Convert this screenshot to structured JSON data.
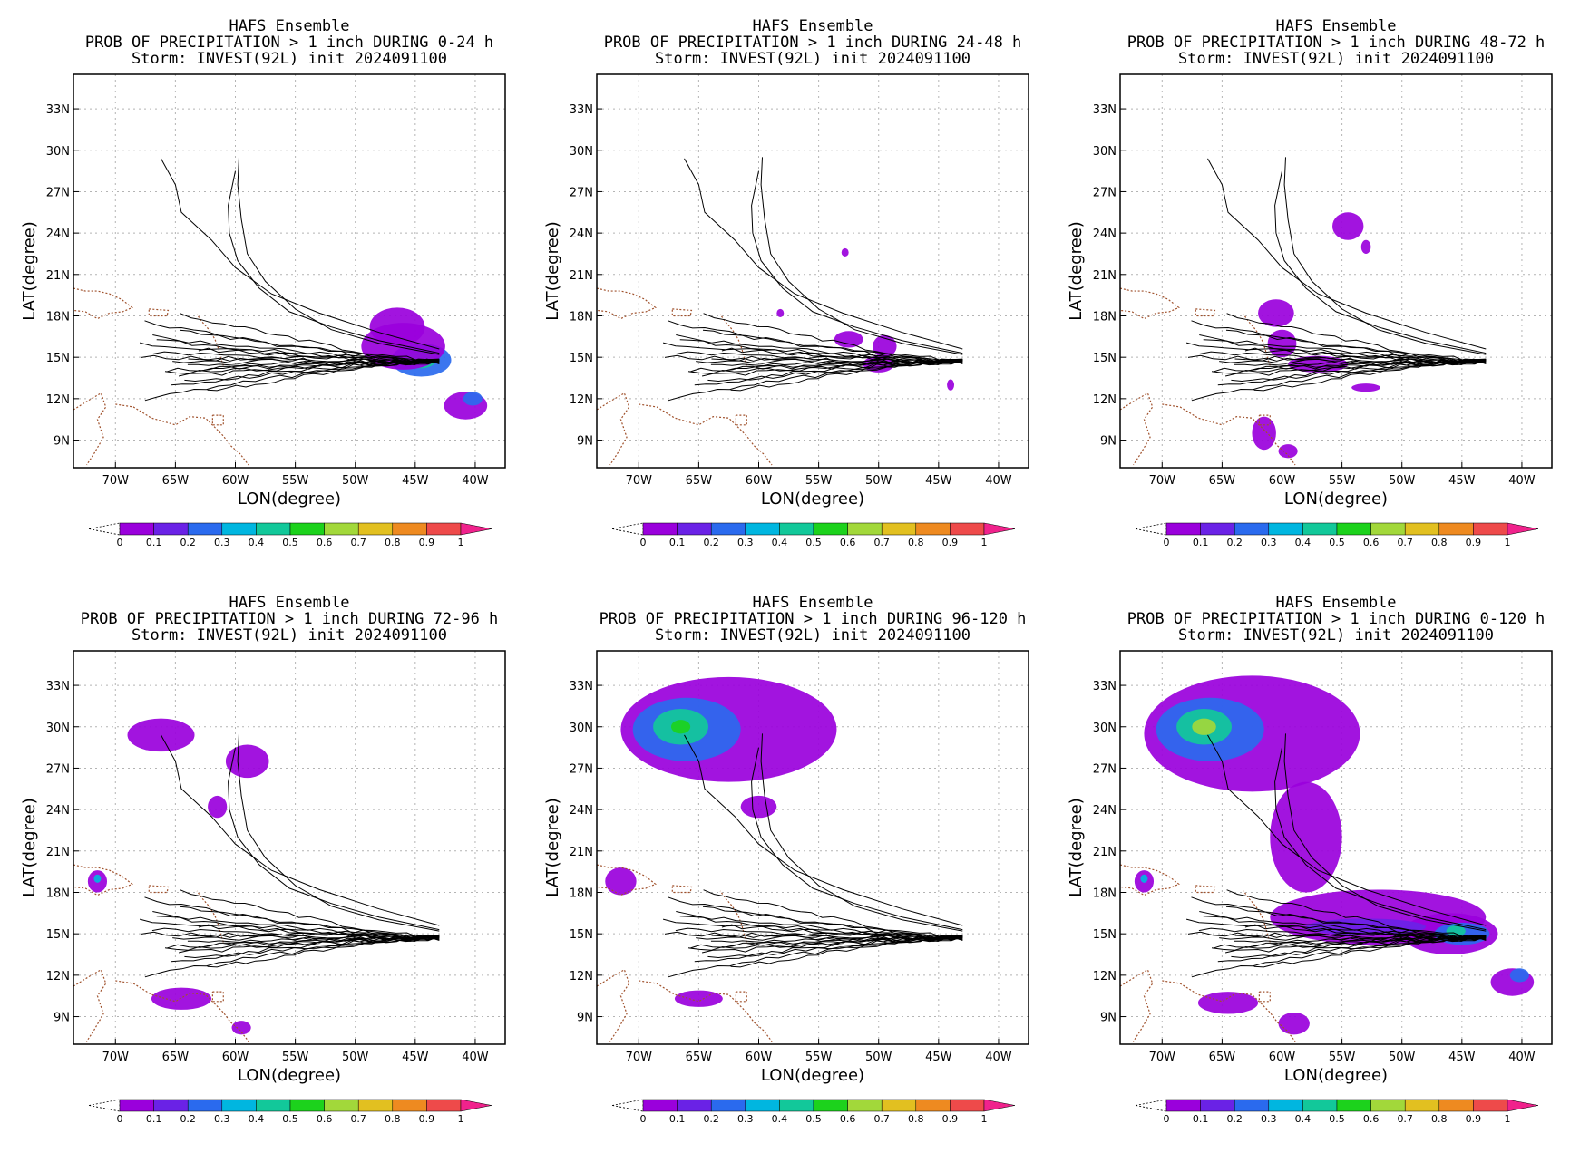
{
  "page": {
    "background": "#ffffff"
  },
  "colorbar": {
    "labels": [
      "0",
      "0.1",
      "0.2",
      "0.3",
      "0.4",
      "0.5",
      "0.6",
      "0.7",
      "0.8",
      "0.9",
      "1"
    ],
    "colors": [
      "#9a00dc",
      "#6a22e6",
      "#2a6aee",
      "#00b6e0",
      "#12c89a",
      "#1cd21c",
      "#a2d83a",
      "#e2c020",
      "#ee8a20",
      "#ee4a4a",
      "#f0228c"
    ]
  },
  "track_color": "#000000",
  "coast_color": "#a0522d",
  "chart_data": [
    {
      "type": "heatmap",
      "title": "HAFS Ensemble",
      "subtitle": "PROB OF PRECIPITATION > 1 inch DURING  0-24 h",
      "storm": "Storm: INVEST(92L) init 2024091100",
      "xlabel": "LON(degree)",
      "ylabel": "LAT(degree)",
      "xlim": [
        -73.5,
        -37.5
      ],
      "ylim": [
        7,
        35.5
      ],
      "xticks": [
        "70W",
        "65W",
        "60W",
        "55W",
        "50W",
        "45W",
        "40W"
      ],
      "yticks": [
        "9N",
        "12N",
        "15N",
        "18N",
        "21N",
        "24N",
        "27N",
        "30N",
        "33N"
      ],
      "grid": true,
      "blobs": [
        {
          "lon": -44.5,
          "lat": 14.8,
          "rx": 2.5,
          "ry": 1.2,
          "level": 0.2
        },
        {
          "lon": -44.5,
          "lat": 14.8,
          "rx": 1.2,
          "ry": 0.6,
          "level": 0.4
        },
        {
          "lon": -46.5,
          "lat": 17.2,
          "rx": 2.3,
          "ry": 1.4,
          "level": 0.05
        },
        {
          "lon": -46.0,
          "lat": 15.8,
          "rx": 3.5,
          "ry": 1.7,
          "level": 0.05
        },
        {
          "lon": -40.8,
          "lat": 11.5,
          "rx": 1.8,
          "ry": 1.0,
          "level": 0.05
        },
        {
          "lon": -40.2,
          "lat": 12.0,
          "rx": 0.8,
          "ry": 0.5,
          "level": 0.2
        }
      ]
    },
    {
      "type": "heatmap",
      "title": "HAFS Ensemble",
      "subtitle": "PROB OF PRECIPITATION > 1 inch DURING 24-48 h",
      "storm": "Storm: INVEST(92L) init 2024091100",
      "xlabel": "LON(degree)",
      "ylabel": "LAT(degree)",
      "xlim": [
        -73.5,
        -37.5
      ],
      "ylim": [
        7,
        35.5
      ],
      "xticks": [
        "70W",
        "65W",
        "60W",
        "55W",
        "50W",
        "45W",
        "40W"
      ],
      "yticks": [
        "9N",
        "12N",
        "15N",
        "18N",
        "21N",
        "24N",
        "27N",
        "30N",
        "33N"
      ],
      "grid": true,
      "blobs": [
        {
          "lon": -52.5,
          "lat": 16.3,
          "rx": 1.2,
          "ry": 0.6,
          "level": 0.05
        },
        {
          "lon": -49.5,
          "lat": 15.8,
          "rx": 1.0,
          "ry": 0.8,
          "level": 0.05
        },
        {
          "lon": -50.0,
          "lat": 14.5,
          "rx": 1.3,
          "ry": 0.6,
          "level": 0.05
        },
        {
          "lon": -52.8,
          "lat": 22.6,
          "rx": 0.3,
          "ry": 0.3,
          "level": 0.05
        },
        {
          "lon": -58.2,
          "lat": 18.2,
          "rx": 0.3,
          "ry": 0.3,
          "level": 0.05
        },
        {
          "lon": -44.0,
          "lat": 13.0,
          "rx": 0.3,
          "ry": 0.4,
          "level": 0.05
        }
      ]
    },
    {
      "type": "heatmap",
      "title": "HAFS Ensemble",
      "subtitle": "PROB OF PRECIPITATION > 1 inch DURING 48-72 h",
      "storm": "Storm: INVEST(92L) init 2024091100",
      "xlabel": "LON(degree)",
      "ylabel": "LAT(degree)",
      "xlim": [
        -73.5,
        -37.5
      ],
      "ylim": [
        7,
        35.5
      ],
      "xticks": [
        "70W",
        "65W",
        "60W",
        "55W",
        "50W",
        "45W",
        "40W"
      ],
      "yticks": [
        "9N",
        "12N",
        "15N",
        "18N",
        "21N",
        "24N",
        "27N",
        "30N",
        "33N"
      ],
      "grid": true,
      "blobs": [
        {
          "lon": -54.5,
          "lat": 24.5,
          "rx": 1.3,
          "ry": 1.0,
          "level": 0.05
        },
        {
          "lon": -53.0,
          "lat": 23.0,
          "rx": 0.4,
          "ry": 0.5,
          "level": 0.05
        },
        {
          "lon": -60.5,
          "lat": 18.2,
          "rx": 1.5,
          "ry": 1.0,
          "level": 0.05
        },
        {
          "lon": -60.0,
          "lat": 16.0,
          "rx": 1.2,
          "ry": 1.0,
          "level": 0.05
        },
        {
          "lon": -57.0,
          "lat": 14.5,
          "rx": 2.5,
          "ry": 0.6,
          "level": 0.05
        },
        {
          "lon": -53.0,
          "lat": 12.8,
          "rx": 1.2,
          "ry": 0.3,
          "level": 0.05
        },
        {
          "lon": -61.5,
          "lat": 9.5,
          "rx": 1.0,
          "ry": 1.2,
          "level": 0.05
        },
        {
          "lon": -59.5,
          "lat": 8.2,
          "rx": 0.8,
          "ry": 0.5,
          "level": 0.05
        }
      ]
    },
    {
      "type": "heatmap",
      "title": "HAFS Ensemble",
      "subtitle": "PROB OF PRECIPITATION > 1 inch DURING 72-96 h",
      "storm": "Storm: INVEST(92L) init 2024091100",
      "xlabel": "LON(degree)",
      "ylabel": "LAT(degree)",
      "xlim": [
        -73.5,
        -37.5
      ],
      "ylim": [
        7,
        35.5
      ],
      "xticks": [
        "70W",
        "65W",
        "60W",
        "55W",
        "50W",
        "45W",
        "40W"
      ],
      "yticks": [
        "9N",
        "12N",
        "15N",
        "18N",
        "21N",
        "24N",
        "27N",
        "30N",
        "33N"
      ],
      "grid": true,
      "blobs": [
        {
          "lon": -66.2,
          "lat": 29.4,
          "rx": 2.8,
          "ry": 1.2,
          "level": 0.05
        },
        {
          "lon": -59.0,
          "lat": 27.5,
          "rx": 1.8,
          "ry": 1.2,
          "level": 0.05
        },
        {
          "lon": -61.5,
          "lat": 24.2,
          "rx": 0.8,
          "ry": 0.8,
          "level": 0.05
        },
        {
          "lon": -71.5,
          "lat": 18.8,
          "rx": 0.8,
          "ry": 0.8,
          "level": 0.05
        },
        {
          "lon": -71.5,
          "lat": 19.0,
          "rx": 0.3,
          "ry": 0.3,
          "level": 0.35
        },
        {
          "lon": -64.5,
          "lat": 10.3,
          "rx": 2.5,
          "ry": 0.8,
          "level": 0.05
        },
        {
          "lon": -59.5,
          "lat": 8.2,
          "rx": 0.8,
          "ry": 0.5,
          "level": 0.05
        }
      ]
    },
    {
      "type": "heatmap",
      "title": "HAFS Ensemble",
      "subtitle": "PROB OF PRECIPITATION > 1 inch DURING 96-120 h",
      "storm": "Storm: INVEST(92L) init 2024091100",
      "xlabel": "LON(degree)",
      "ylabel": "LAT(degree)",
      "xlim": [
        -73.5,
        -37.5
      ],
      "ylim": [
        7,
        35.5
      ],
      "xticks": [
        "70W",
        "65W",
        "60W",
        "55W",
        "50W",
        "45W",
        "40W"
      ],
      "yticks": [
        "9N",
        "12N",
        "15N",
        "18N",
        "21N",
        "24N",
        "27N",
        "30N",
        "33N"
      ],
      "grid": true,
      "blobs": [
        {
          "lon": -62.5,
          "lat": 29.8,
          "rx": 9.0,
          "ry": 3.8,
          "level": 0.05
        },
        {
          "lon": -66.0,
          "lat": 29.8,
          "rx": 4.5,
          "ry": 2.3,
          "level": 0.2
        },
        {
          "lon": -66.5,
          "lat": 30.0,
          "rx": 2.3,
          "ry": 1.3,
          "level": 0.4
        },
        {
          "lon": -66.5,
          "lat": 30.0,
          "rx": 0.8,
          "ry": 0.5,
          "level": 0.55
        },
        {
          "lon": -60.0,
          "lat": 24.2,
          "rx": 1.5,
          "ry": 0.8,
          "level": 0.05
        },
        {
          "lon": -71.5,
          "lat": 18.8,
          "rx": 1.3,
          "ry": 1.0,
          "level": 0.05
        },
        {
          "lon": -65.0,
          "lat": 10.3,
          "rx": 2.0,
          "ry": 0.6,
          "level": 0.05
        }
      ]
    },
    {
      "type": "heatmap",
      "title": "HAFS Ensemble",
      "subtitle": "PROB OF PRECIPITATION > 1 inch DURING 0-120 h",
      "storm": "Storm: INVEST(92L) init 2024091100",
      "xlabel": "LON(degree)",
      "ylabel": "LAT(degree)",
      "xlim": [
        -73.5,
        -37.5
      ],
      "ylim": [
        7,
        35.5
      ],
      "xticks": [
        "70W",
        "65W",
        "60W",
        "55W",
        "50W",
        "45W",
        "40W"
      ],
      "yticks": [
        "9N",
        "12N",
        "15N",
        "18N",
        "21N",
        "24N",
        "27N",
        "30N",
        "33N"
      ],
      "grid": true,
      "blobs": [
        {
          "lon": -62.5,
          "lat": 29.5,
          "rx": 9.0,
          "ry": 4.2,
          "level": 0.05
        },
        {
          "lon": -58.0,
          "lat": 22.0,
          "rx": 3.0,
          "ry": 4.0,
          "level": 0.05
        },
        {
          "lon": -52.0,
          "lat": 16.2,
          "rx": 9.0,
          "ry": 2.0,
          "level": 0.05
        },
        {
          "lon": -46.0,
          "lat": 15.0,
          "rx": 4.0,
          "ry": 1.5,
          "level": 0.05
        },
        {
          "lon": -66.0,
          "lat": 29.8,
          "rx": 4.5,
          "ry": 2.3,
          "level": 0.2
        },
        {
          "lon": -66.5,
          "lat": 30.0,
          "rx": 2.3,
          "ry": 1.3,
          "level": 0.45
        },
        {
          "lon": -66.5,
          "lat": 30.0,
          "rx": 1.0,
          "ry": 0.6,
          "level": 0.65
        },
        {
          "lon": -53.0,
          "lat": 15.5,
          "rx": 5.0,
          "ry": 0.6,
          "level": 0.15
        },
        {
          "lon": -45.0,
          "lat": 15.0,
          "rx": 2.3,
          "ry": 0.8,
          "level": 0.25
        },
        {
          "lon": -45.5,
          "lat": 15.2,
          "rx": 0.8,
          "ry": 0.4,
          "level": 0.4
        },
        {
          "lon": -40.8,
          "lat": 11.5,
          "rx": 1.8,
          "ry": 1.0,
          "level": 0.05
        },
        {
          "lon": -40.2,
          "lat": 12.0,
          "rx": 0.8,
          "ry": 0.5,
          "level": 0.2
        },
        {
          "lon": -71.5,
          "lat": 18.8,
          "rx": 0.8,
          "ry": 0.8,
          "level": 0.05
        },
        {
          "lon": -71.5,
          "lat": 19.0,
          "rx": 0.3,
          "ry": 0.3,
          "level": 0.35
        },
        {
          "lon": -64.5,
          "lat": 10.0,
          "rx": 2.5,
          "ry": 0.8,
          "level": 0.05
        },
        {
          "lon": -59.0,
          "lat": 8.5,
          "rx": 1.3,
          "ry": 0.8,
          "level": 0.05
        }
      ]
    }
  ]
}
